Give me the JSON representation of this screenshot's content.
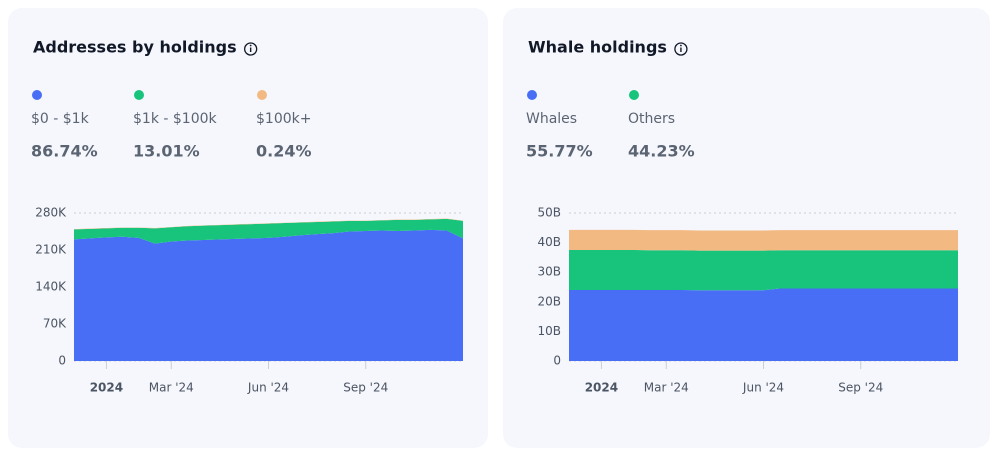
{
  "chart_data": [
    {
      "type": "area",
      "stacked": true,
      "title": "Addresses by holdings",
      "categories": [
        null,
        null,
        "2024",
        null,
        null,
        null,
        "Mar '24",
        null,
        null,
        null,
        null,
        null,
        "Jun '24",
        null,
        null,
        null,
        null,
        null,
        "Sep '24",
        null,
        null,
        null,
        null,
        null,
        null
      ],
      "ylim": [
        0,
        280000
      ],
      "yticks": [
        0,
        {
          "value": 70000,
          "label": "70K"
        },
        {
          "value": 140000,
          "label": "140K"
        },
        {
          "value": 210000,
          "label": "210K"
        },
        {
          "value": 280000,
          "label": "280K"
        }
      ],
      "grid": true,
      "series": [
        {
          "name": "$0 - $1k",
          "color": "#476ef5",
          "share": 86.74,
          "share_label": "86.74%",
          "values": [
            230000,
            232000,
            234000,
            235000,
            233000,
            222000,
            226000,
            228000,
            229000,
            230000,
            231000,
            232000,
            233000,
            235000,
            238000,
            240000,
            242000,
            245000,
            246000,
            247000,
            246000,
            247000,
            248000,
            247000,
            232000
          ]
        },
        {
          "name": "$1k - $100k",
          "color": "#18c47c",
          "share": 13.01,
          "share_label": "13.01%",
          "values": [
            19000,
            18000,
            17000,
            17000,
            19000,
            29000,
            27000,
            27000,
            27000,
            27000,
            27000,
            27000,
            27000,
            26000,
            24000,
            23000,
            22000,
            20000,
            19000,
            19000,
            21000,
            20000,
            20000,
            22000,
            33000
          ]
        },
        {
          "name": "$100k+",
          "color": "#f3b983",
          "share": 0.24,
          "share_label": "0.24%",
          "values": [
            600,
            600,
            600,
            600,
            600,
            600,
            600,
            600,
            600,
            600,
            600,
            600,
            600,
            600,
            600,
            600,
            600,
            600,
            600,
            600,
            600,
            600,
            600,
            600,
            600
          ]
        }
      ]
    },
    {
      "type": "area",
      "stacked": true,
      "title": "Whale holdings",
      "categories": [
        null,
        null,
        "2024",
        null,
        null,
        null,
        "Mar '24",
        null,
        null,
        null,
        null,
        null,
        "Jun '24",
        null,
        null,
        null,
        null,
        null,
        "Sep '24",
        null,
        null,
        null,
        null,
        null,
        null
      ],
      "ylim": [
        0,
        50000000000
      ],
      "yticks": [
        0,
        {
          "value": 10000000000,
          "label": "10B"
        },
        {
          "value": 20000000000,
          "label": "20B"
        },
        {
          "value": 30000000000,
          "label": "30B"
        },
        {
          "value": 40000000000,
          "label": "40B"
        },
        {
          "value": 50000000000,
          "label": "50B"
        }
      ],
      "grid": true,
      "series": [
        {
          "name": "Whales",
          "color": "#476ef5",
          "share": 55.77,
          "share_label": "55.77%",
          "values": [
            24000000000,
            24000000000,
            24000000000,
            24000000000,
            24000000000,
            24000000000,
            24000000000,
            24000000000,
            23900000000,
            23900000000,
            23900000000,
            23900000000,
            23900000000,
            24500000000,
            24500000000,
            24500000000,
            24500000000,
            24500000000,
            24500000000,
            24500000000,
            24500000000,
            24500000000,
            24500000000,
            24500000000,
            24500000000
          ]
        },
        {
          "name": "Others",
          "color": "#18c47c",
          "share": 44.23,
          "share_label": "44.23%",
          "values": [
            13500000000,
            13500000000,
            13500000000,
            13500000000,
            13500000000,
            13400000000,
            13400000000,
            13400000000,
            13400000000,
            13400000000,
            13400000000,
            13400000000,
            13400000000,
            12900000000,
            12900000000,
            12900000000,
            12900000000,
            12900000000,
            12900000000,
            12900000000,
            12900000000,
            12900000000,
            12900000000,
            12900000000,
            12900000000
          ]
        },
        {
          "color": "#f3b983",
          "values": [
            6800000000,
            6800000000,
            6800000000,
            6800000000,
            6800000000,
            6800000000,
            6800000000,
            6800000000,
            6800000000,
            6800000000,
            6800000000,
            6800000000,
            6800000000,
            6800000000,
            6800000000,
            6800000000,
            6800000000,
            6800000000,
            6800000000,
            6800000000,
            6800000000,
            6800000000,
            6800000000,
            6800000000,
            6800000000
          ]
        }
      ]
    }
  ]
}
